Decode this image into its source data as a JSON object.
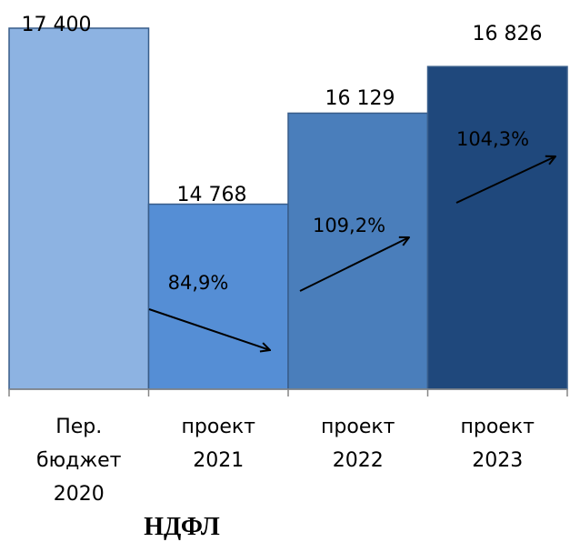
{
  "chart_data": {
    "type": "bar",
    "title": "НДФЛ",
    "categories": [
      [
        "Пер.",
        "бюджет",
        "2020"
      ],
      [
        "проект",
        "2021"
      ],
      [
        "проект",
        "2022"
      ],
      [
        "проект",
        "2023"
      ]
    ],
    "values": [
      17400,
      14768,
      16129,
      16826
    ],
    "value_labels": [
      "17 400",
      "14 768",
      "16 129",
      "16 826"
    ],
    "growth_labels": [
      "84,9%",
      "109,2%",
      "104,3%"
    ],
    "growth_values": [
      84.9,
      109.2,
      104.3
    ],
    "ylim": [
      12000,
      17400
    ],
    "colors": [
      "#8DB3E2",
      "#558ED5",
      "#4A7EBB",
      "#1F487C"
    ],
    "bar_stroke": "#385D8A",
    "grid": false,
    "legend": "none",
    "xlabel": "",
    "ylabel": ""
  }
}
